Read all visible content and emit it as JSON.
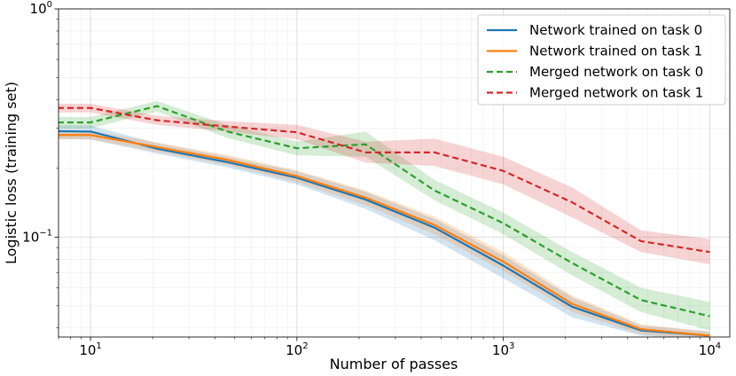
{
  "chart_data": {
    "type": "line",
    "title": "",
    "xlabel": "Number of passes",
    "ylabel": "Logistic loss (training set)",
    "x_scale": "log",
    "y_scale": "log",
    "xlim": [
      7,
      12500
    ],
    "ylim": [
      0.0365,
      1.0
    ],
    "grid": true,
    "legend_placement": "top-right",
    "x_ticks": [
      {
        "value": 10,
        "base": "10",
        "exp": "1"
      },
      {
        "value": 100,
        "base": "10",
        "exp": "2"
      },
      {
        "value": 1000,
        "base": "10",
        "exp": "3"
      },
      {
        "value": 10000,
        "base": "10",
        "exp": "4"
      }
    ],
    "y_ticks": [
      {
        "value": 0.1,
        "base": "10",
        "exp": "−1"
      },
      {
        "value": 1.0,
        "base": "10",
        "exp": "0"
      }
    ],
    "x": [
      5,
      10,
      21,
      46,
      100,
      215,
      464,
      1000,
      2154,
      4642,
      10000
    ],
    "series": [
      {
        "name": "Network trained on task 0",
        "color": "#1f77b4",
        "dash": "solid",
        "values": [
          0.292,
          0.29,
          0.244,
          0.213,
          0.182,
          0.146,
          0.11,
          0.075,
          0.0495,
          0.039,
          0.037
        ],
        "lower": [
          0.27,
          0.268,
          0.232,
          0.202,
          0.17,
          0.133,
          0.097,
          0.066,
          0.0445,
          0.037,
          0.0355
        ],
        "upper": [
          0.31,
          0.308,
          0.258,
          0.225,
          0.194,
          0.158,
          0.12,
          0.083,
          0.0545,
          0.041,
          0.0385
        ]
      },
      {
        "name": "Network trained on task 1",
        "color": "#ff7f0e",
        "dash": "solid",
        "values": [
          0.28,
          0.28,
          0.248,
          0.218,
          0.185,
          0.149,
          0.113,
          0.078,
          0.051,
          0.0395,
          0.037
        ],
        "lower": [
          0.268,
          0.268,
          0.236,
          0.207,
          0.174,
          0.138,
          0.103,
          0.071,
          0.047,
          0.0375,
          0.0355
        ],
        "upper": [
          0.292,
          0.292,
          0.26,
          0.229,
          0.196,
          0.16,
          0.123,
          0.086,
          0.0555,
          0.0415,
          0.0385
        ]
      },
      {
        "name": "Merged network on task 0",
        "color": "#2ca02c",
        "dash": "dashed",
        "values": [
          0.318,
          0.318,
          0.375,
          0.29,
          0.245,
          0.255,
          0.16,
          0.115,
          0.077,
          0.053,
          0.045
        ],
        "lower": [
          0.3,
          0.3,
          0.355,
          0.272,
          0.228,
          0.225,
          0.145,
          0.103,
          0.068,
          0.047,
          0.039
        ],
        "upper": [
          0.336,
          0.336,
          0.395,
          0.31,
          0.262,
          0.29,
          0.178,
          0.128,
          0.086,
          0.06,
          0.052
        ]
      },
      {
        "name": "Merged network on task 1",
        "color": "#d62728",
        "dash": "dashed",
        "values": [
          0.368,
          0.368,
          0.325,
          0.305,
          0.288,
          0.235,
          0.235,
          0.195,
          0.142,
          0.096,
          0.086
        ],
        "lower": [
          0.352,
          0.352,
          0.31,
          0.29,
          0.268,
          0.212,
          0.205,
          0.17,
          0.122,
          0.086,
          0.076
        ],
        "upper": [
          0.384,
          0.384,
          0.34,
          0.322,
          0.31,
          0.262,
          0.27,
          0.225,
          0.165,
          0.107,
          0.098
        ]
      }
    ]
  }
}
